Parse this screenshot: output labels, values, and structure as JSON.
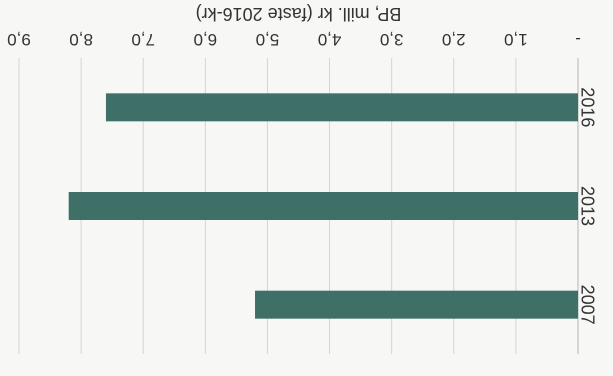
{
  "chart_data": {
    "type": "bar",
    "orientation": "horizontal",
    "rotation_deg": 180,
    "categories": [
      "2007",
      "2013",
      "2016"
    ],
    "values": [
      5.2,
      8.2,
      7.6
    ],
    "xlabel": "BP, mill. kr (faste 2016-kr)",
    "ylabel": "",
    "xlim": [
      0,
      9
    ],
    "ticks": [
      {
        "value": 0,
        "label": "-"
      },
      {
        "value": 1,
        "label": "1,0"
      },
      {
        "value": 2,
        "label": "2,0"
      },
      {
        "value": 3,
        "label": "3,0"
      },
      {
        "value": 4,
        "label": "4,0"
      },
      {
        "value": 5,
        "label": "5,0"
      },
      {
        "value": 6,
        "label": "6,0"
      },
      {
        "value": 7,
        "label": "7,0"
      },
      {
        "value": 8,
        "label": "8,0"
      },
      {
        "value": 9,
        "label": "9,0"
      }
    ],
    "grid": true,
    "bar_color": "#3f7068",
    "legend": "none"
  }
}
